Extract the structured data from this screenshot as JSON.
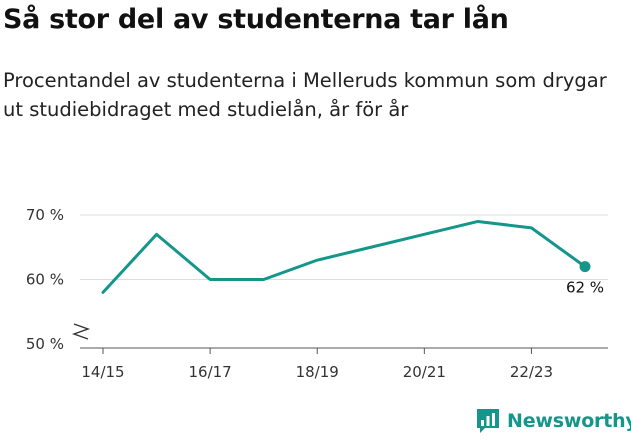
{
  "header": {
    "title": "Så stor del av studenterna tar lån",
    "subtitle": "Procentandel av studenterna i Melleruds kommun som drygar ut studiebidraget med studielån, år för år"
  },
  "brand": {
    "name": "Newsworthy",
    "color": "#14968a",
    "icon": "chart-bar-icon"
  },
  "chart_data": {
    "type": "line",
    "x": [
      "14/15",
      "15/16",
      "16/17",
      "17/18",
      "18/19",
      "19/20",
      "20/21",
      "21/22",
      "22/23",
      "23/24"
    ],
    "x_tick_labels": [
      "14/15",
      "16/17",
      "18/19",
      "20/21",
      "22/23"
    ],
    "series": [
      {
        "values": [
          58,
          67,
          60,
          60,
          63,
          65,
          67,
          69,
          68,
          62
        ],
        "color": "#14968a"
      }
    ],
    "y_ticks": [
      50,
      60,
      70
    ],
    "y_tick_labels": [
      "50 %",
      "60 %",
      "70 %"
    ],
    "ylim": [
      50,
      70
    ],
    "axis_break": true,
    "grid": true,
    "end_label": "62 %",
    "title": "",
    "xlabel": "",
    "ylabel": ""
  }
}
